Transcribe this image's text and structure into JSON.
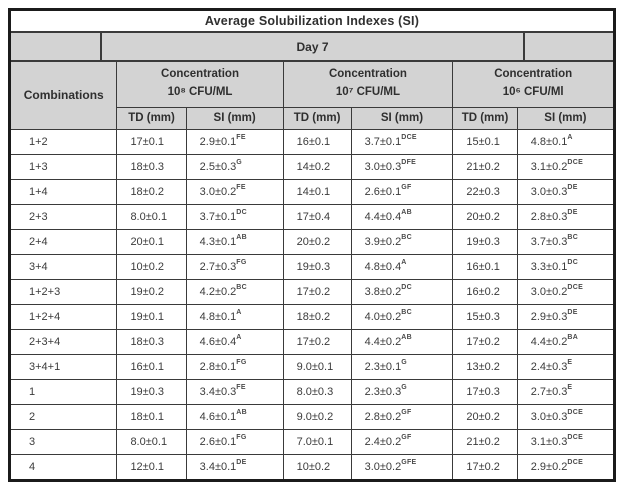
{
  "table": {
    "title": "Average Solubilization Indexes (SI)",
    "day_header": "Day 7",
    "combinations_header": "Combinations",
    "concentration_groups": [
      {
        "line1": "Concentration",
        "line2": "10⁸ CFU/ML"
      },
      {
        "line1": "Concentration",
        "line2": "10⁷ CFU/ML"
      },
      {
        "line1": "Concentration",
        "line2": "10⁶ CFU/Ml"
      }
    ],
    "sub_headers": [
      "TD (mm)",
      "SI (mm)"
    ],
    "colors": {
      "header_bg": "#d3d3d3",
      "row_bg": "#ffffff",
      "inner_border": "#3a3a3a",
      "outer_border": "#1b1b1b",
      "text": "#3b3b3b"
    },
    "rows": [
      {
        "combination": "1+2",
        "cells": [
          {
            "v": "17±0.1"
          },
          {
            "v": "2.9±0.1",
            "sup": "FE"
          },
          {
            "v": "16±0.1"
          },
          {
            "v": "3.7±0.1",
            "sup": "DCE"
          },
          {
            "v": "15±0.1"
          },
          {
            "v": "4.8±0.1",
            "sup": "A"
          }
        ]
      },
      {
        "combination": "1+3",
        "cells": [
          {
            "v": "18±0.3"
          },
          {
            "v": "2.5±0.3",
            "sup": "G"
          },
          {
            "v": "14±0.2"
          },
          {
            "v": "3.0±0.3",
            "sup": "DFE"
          },
          {
            "v": "21±0.2"
          },
          {
            "v": "3.1±0.2",
            "sup": "DCE"
          }
        ]
      },
      {
        "combination": "1+4",
        "cells": [
          {
            "v": "18±0.2"
          },
          {
            "v": "3.0±0.2",
            "sup": "FE"
          },
          {
            "v": "14±0.1"
          },
          {
            "v": "2.6±0.1",
            "sup": "GF"
          },
          {
            "v": "22±0.3"
          },
          {
            "v": "3.0±0.3",
            "sup": "DE"
          }
        ]
      },
      {
        "combination": "2+3",
        "cells": [
          {
            "v": "8.0±0.1"
          },
          {
            "v": "3.7±0.1",
            "sup": "DC"
          },
          {
            "v": "17±0.4"
          },
          {
            "v": "4.4±0.4",
            "sup": "AB"
          },
          {
            "v": "20±0.2"
          },
          {
            "v": "2.8±0.3",
            "sup": "DE"
          }
        ]
      },
      {
        "combination": "2+4",
        "cells": [
          {
            "v": "20±0.1"
          },
          {
            "v": "4.3±0.1",
            "sup": "AB"
          },
          {
            "v": "20±0.2"
          },
          {
            "v": "3.9±0.2",
            "sup": "BC"
          },
          {
            "v": "19±0.3"
          },
          {
            "v": "3.7±0.3",
            "sup": "BC"
          }
        ]
      },
      {
        "combination": "3+4",
        "cells": [
          {
            "v": "10±0.2"
          },
          {
            "v": "2.7±0.3",
            "sup": "FG"
          },
          {
            "v": "19±0.3"
          },
          {
            "v": "4.8±0.4",
            "sup": "A"
          },
          {
            "v": "16±0.1"
          },
          {
            "v": "3.3±0.1",
            "sup": "DC"
          }
        ]
      },
      {
        "combination": "1+2+3",
        "cells": [
          {
            "v": "19±0.2"
          },
          {
            "v": "4.2±0.2",
            "sup": "BC"
          },
          {
            "v": "17±0.2"
          },
          {
            "v": "3.8±0.2",
            "sup": "DC"
          },
          {
            "v": "16±0.2"
          },
          {
            "v": "3.0±0.2",
            "sup": "DCE"
          }
        ]
      },
      {
        "combination": "1+2+4",
        "cells": [
          {
            "v": "19±0.1"
          },
          {
            "v": "4.8±0.1",
            "sup": "A"
          },
          {
            "v": "18±0.2"
          },
          {
            "v": "4.0±0.2",
            "sup": "BC"
          },
          {
            "v": "15±0.3"
          },
          {
            "v": "2.9±0.3",
            "sup": "DE"
          }
        ]
      },
      {
        "combination": "2+3+4",
        "cells": [
          {
            "v": "18±0.3"
          },
          {
            "v": "4.6±0.4",
            "sup": "A"
          },
          {
            "v": "17±0.2"
          },
          {
            "v": "4.4±0.2",
            "sup": "AB"
          },
          {
            "v": "17±0.2"
          },
          {
            "v": "4.4±0.2",
            "sup": "BA"
          }
        ]
      },
      {
        "combination": "3+4+1",
        "cells": [
          {
            "v": "16±0.1"
          },
          {
            "v": "2.8±0.1",
            "sup": "FG"
          },
          {
            "v": "9.0±0.1"
          },
          {
            "v": "2.3±0.1",
            "sup": "G"
          },
          {
            "v": "13±0.2"
          },
          {
            "v": "2.4±0.3",
            "sup": "E"
          }
        ]
      },
      {
        "combination": "1",
        "cells": [
          {
            "v": "19±0.3"
          },
          {
            "v": "3.4±0.3",
            "sup": "FE"
          },
          {
            "v": "8.0±0.3"
          },
          {
            "v": "2.3±0.3",
            "sup": "G"
          },
          {
            "v": "17±0.3"
          },
          {
            "v": "2.7±0.3",
            "sup": "E"
          }
        ]
      },
      {
        "combination": "2",
        "cells": [
          {
            "v": "18±0.1"
          },
          {
            "v": "4.6±0.1",
            "sup": "AB"
          },
          {
            "v": "9.0±0.2"
          },
          {
            "v": "2.8±0.2",
            "sup": "GF"
          },
          {
            "v": "20±0.2"
          },
          {
            "v": "3.0±0.3",
            "sup": "DCE"
          }
        ]
      },
      {
        "combination": "3",
        "cells": [
          {
            "v": "8.0±0.1"
          },
          {
            "v": "2.6±0.1",
            "sup": "FG"
          },
          {
            "v": "7.0±0.1"
          },
          {
            "v": "2.4±0.2",
            "sup": "GF"
          },
          {
            "v": "21±0.2"
          },
          {
            "v": "3.1±0.3",
            "sup": "DCE"
          }
        ]
      },
      {
        "combination": "4",
        "cells": [
          {
            "v": "12±0.1"
          },
          {
            "v": "3.4±0.1",
            "sup": "DE"
          },
          {
            "v": "10±0.2"
          },
          {
            "v": "3.0±0.2",
            "sup": "GFE"
          },
          {
            "v": "17±0.2"
          },
          {
            "v": "2.9±0.2",
            "sup": "DCE"
          }
        ]
      }
    ]
  }
}
